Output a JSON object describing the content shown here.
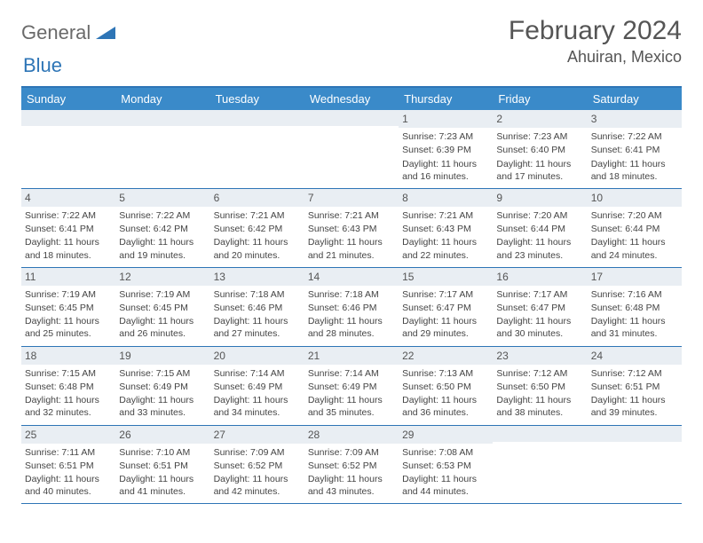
{
  "brand": {
    "name_a": "General",
    "name_b": "Blue"
  },
  "title": "February 2024",
  "location": "Ahuiran, Mexico",
  "colors": {
    "header_bar": "#3a8ac9",
    "header_border": "#2e75b6",
    "daynum_bg": "#e9eef3",
    "text": "#444444",
    "title_text": "#555555",
    "logo_gray": "#6a6a6a",
    "logo_blue": "#2e75b6",
    "background": "#ffffff"
  },
  "typography": {
    "title_fontsize": 30,
    "subtitle_fontsize": 18,
    "dayhead_fontsize": 13,
    "cell_fontsize": 10.5
  },
  "day_names": [
    "Sunday",
    "Monday",
    "Tuesday",
    "Wednesday",
    "Thursday",
    "Friday",
    "Saturday"
  ],
  "weeks": [
    [
      {
        "day": "",
        "lines": []
      },
      {
        "day": "",
        "lines": []
      },
      {
        "day": "",
        "lines": []
      },
      {
        "day": "",
        "lines": []
      },
      {
        "day": "1",
        "lines": [
          "Sunrise: 7:23 AM",
          "Sunset: 6:39 PM",
          "Daylight: 11 hours and 16 minutes."
        ]
      },
      {
        "day": "2",
        "lines": [
          "Sunrise: 7:23 AM",
          "Sunset: 6:40 PM",
          "Daylight: 11 hours and 17 minutes."
        ]
      },
      {
        "day": "3",
        "lines": [
          "Sunrise: 7:22 AM",
          "Sunset: 6:41 PM",
          "Daylight: 11 hours and 18 minutes."
        ]
      }
    ],
    [
      {
        "day": "4",
        "lines": [
          "Sunrise: 7:22 AM",
          "Sunset: 6:41 PM",
          "Daylight: 11 hours and 18 minutes."
        ]
      },
      {
        "day": "5",
        "lines": [
          "Sunrise: 7:22 AM",
          "Sunset: 6:42 PM",
          "Daylight: 11 hours and 19 minutes."
        ]
      },
      {
        "day": "6",
        "lines": [
          "Sunrise: 7:21 AM",
          "Sunset: 6:42 PM",
          "Daylight: 11 hours and 20 minutes."
        ]
      },
      {
        "day": "7",
        "lines": [
          "Sunrise: 7:21 AM",
          "Sunset: 6:43 PM",
          "Daylight: 11 hours and 21 minutes."
        ]
      },
      {
        "day": "8",
        "lines": [
          "Sunrise: 7:21 AM",
          "Sunset: 6:43 PM",
          "Daylight: 11 hours and 22 minutes."
        ]
      },
      {
        "day": "9",
        "lines": [
          "Sunrise: 7:20 AM",
          "Sunset: 6:44 PM",
          "Daylight: 11 hours and 23 minutes."
        ]
      },
      {
        "day": "10",
        "lines": [
          "Sunrise: 7:20 AM",
          "Sunset: 6:44 PM",
          "Daylight: 11 hours and 24 minutes."
        ]
      }
    ],
    [
      {
        "day": "11",
        "lines": [
          "Sunrise: 7:19 AM",
          "Sunset: 6:45 PM",
          "Daylight: 11 hours and 25 minutes."
        ]
      },
      {
        "day": "12",
        "lines": [
          "Sunrise: 7:19 AM",
          "Sunset: 6:45 PM",
          "Daylight: 11 hours and 26 minutes."
        ]
      },
      {
        "day": "13",
        "lines": [
          "Sunrise: 7:18 AM",
          "Sunset: 6:46 PM",
          "Daylight: 11 hours and 27 minutes."
        ]
      },
      {
        "day": "14",
        "lines": [
          "Sunrise: 7:18 AM",
          "Sunset: 6:46 PM",
          "Daylight: 11 hours and 28 minutes."
        ]
      },
      {
        "day": "15",
        "lines": [
          "Sunrise: 7:17 AM",
          "Sunset: 6:47 PM",
          "Daylight: 11 hours and 29 minutes."
        ]
      },
      {
        "day": "16",
        "lines": [
          "Sunrise: 7:17 AM",
          "Sunset: 6:47 PM",
          "Daylight: 11 hours and 30 minutes."
        ]
      },
      {
        "day": "17",
        "lines": [
          "Sunrise: 7:16 AM",
          "Sunset: 6:48 PM",
          "Daylight: 11 hours and 31 minutes."
        ]
      }
    ],
    [
      {
        "day": "18",
        "lines": [
          "Sunrise: 7:15 AM",
          "Sunset: 6:48 PM",
          "Daylight: 11 hours and 32 minutes."
        ]
      },
      {
        "day": "19",
        "lines": [
          "Sunrise: 7:15 AM",
          "Sunset: 6:49 PM",
          "Daylight: 11 hours and 33 minutes."
        ]
      },
      {
        "day": "20",
        "lines": [
          "Sunrise: 7:14 AM",
          "Sunset: 6:49 PM",
          "Daylight: 11 hours and 34 minutes."
        ]
      },
      {
        "day": "21",
        "lines": [
          "Sunrise: 7:14 AM",
          "Sunset: 6:49 PM",
          "Daylight: 11 hours and 35 minutes."
        ]
      },
      {
        "day": "22",
        "lines": [
          "Sunrise: 7:13 AM",
          "Sunset: 6:50 PM",
          "Daylight: 11 hours and 36 minutes."
        ]
      },
      {
        "day": "23",
        "lines": [
          "Sunrise: 7:12 AM",
          "Sunset: 6:50 PM",
          "Daylight: 11 hours and 38 minutes."
        ]
      },
      {
        "day": "24",
        "lines": [
          "Sunrise: 7:12 AM",
          "Sunset: 6:51 PM",
          "Daylight: 11 hours and 39 minutes."
        ]
      }
    ],
    [
      {
        "day": "25",
        "lines": [
          "Sunrise: 7:11 AM",
          "Sunset: 6:51 PM",
          "Daylight: 11 hours and 40 minutes."
        ]
      },
      {
        "day": "26",
        "lines": [
          "Sunrise: 7:10 AM",
          "Sunset: 6:51 PM",
          "Daylight: 11 hours and 41 minutes."
        ]
      },
      {
        "day": "27",
        "lines": [
          "Sunrise: 7:09 AM",
          "Sunset: 6:52 PM",
          "Daylight: 11 hours and 42 minutes."
        ]
      },
      {
        "day": "28",
        "lines": [
          "Sunrise: 7:09 AM",
          "Sunset: 6:52 PM",
          "Daylight: 11 hours and 43 minutes."
        ]
      },
      {
        "day": "29",
        "lines": [
          "Sunrise: 7:08 AM",
          "Sunset: 6:53 PM",
          "Daylight: 11 hours and 44 minutes."
        ]
      },
      {
        "day": "",
        "lines": []
      },
      {
        "day": "",
        "lines": []
      }
    ]
  ]
}
